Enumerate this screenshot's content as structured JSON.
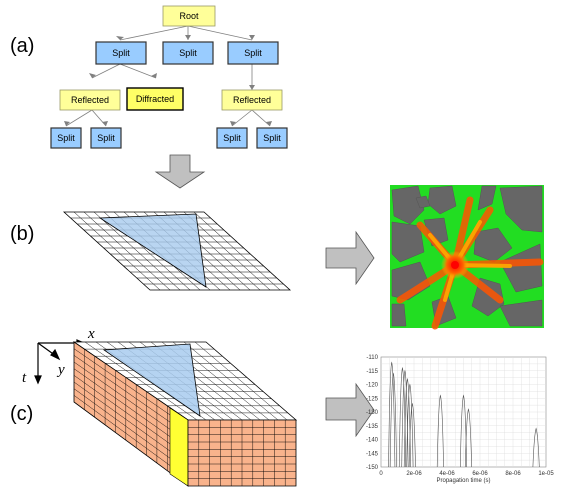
{
  "panel_labels": {
    "a": "(a)",
    "b": "(b)",
    "c": "(c)"
  },
  "tree": {
    "root": "Root",
    "split": "Split",
    "reflected": "Reflected",
    "diffracted": "Diffracted"
  },
  "axes": {
    "x": "x",
    "y": "y",
    "t": "t"
  },
  "colors": {
    "root_fill": "#ffff99",
    "split_fill": "#99ccff",
    "reflected_fill": "#ffff99",
    "diffracted_fill": "#ffff66",
    "triangle_fill": "#a8cbee",
    "volume_side": "#f9b38c",
    "volume_end": "#ffff33",
    "arrow_fill": "#c0c0c0"
  },
  "icons": [
    "down-arrow-icon",
    "right-arrow-icon"
  ],
  "chart_data": {
    "type": "line",
    "xlabel": "Propagation time (s)",
    "ylabel": "",
    "xlim": [
      0,
      1e-05
    ],
    "ylim": [
      -150,
      -110
    ],
    "x_ticks": [
      "0",
      "2e-06",
      "4e-06",
      "6e-06",
      "8e-06",
      "1e-05"
    ],
    "y_ticks": [
      "-110",
      "-115",
      "-120",
      "-125",
      "-130",
      "-135",
      "-140",
      "-145",
      "-150"
    ],
    "grid": true,
    "peaks": [
      {
        "t": 6.5e-07,
        "y": -112
      },
      {
        "t": 7.5e-07,
        "y": -116
      },
      {
        "t": 1.3e-06,
        "y": -114
      },
      {
        "t": 1.45e-06,
        "y": -115
      },
      {
        "t": 1.6e-06,
        "y": -118
      },
      {
        "t": 1.75e-06,
        "y": -120
      },
      {
        "t": 1.9e-06,
        "y": -127
      },
      {
        "t": 3.6e-06,
        "y": -124
      },
      {
        "t": 5e-06,
        "y": -124
      },
      {
        "t": 5.3e-06,
        "y": -129
      },
      {
        "t": 9.4e-06,
        "y": -136
      }
    ]
  }
}
